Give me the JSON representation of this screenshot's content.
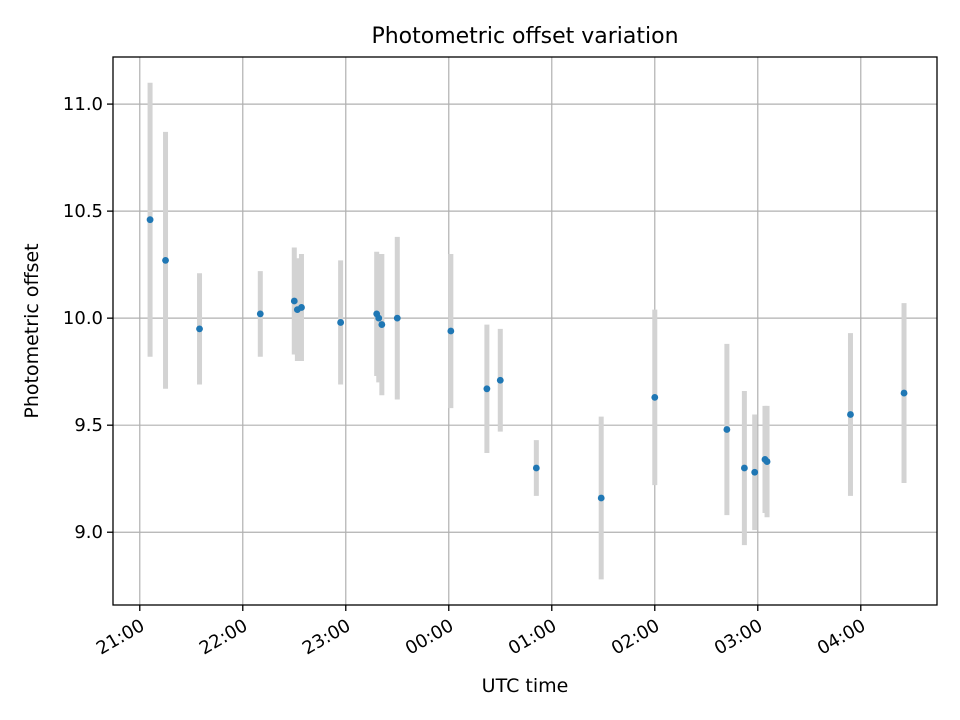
{
  "chart_data": {
    "type": "scatter",
    "title": "Photometric offset variation",
    "xlabel": "UTC time",
    "ylabel": "Photometric offset",
    "x_unit": "UTC clock time (hours; values after midnight shown as 24+)",
    "xlim": [
      20.74,
      28.74
    ],
    "ylim": [
      8.66,
      11.22
    ],
    "x_ticks": [
      21,
      22,
      23,
      24,
      25,
      26,
      27,
      28
    ],
    "x_tick_labels": [
      "21:00",
      "22:00",
      "23:00",
      "00:00",
      "01:00",
      "02:00",
      "03:00",
      "04:00"
    ],
    "y_ticks": [
      9.0,
      9.5,
      10.0,
      10.5,
      11.0
    ],
    "y_tick_labels": [
      "9.0",
      "9.5",
      "10.0",
      "10.5",
      "11.0"
    ],
    "grid": true,
    "marker_color": "#1f77b4",
    "errorbar_color": "#d3d3d3",
    "points": [
      {
        "x": 21.1,
        "y": 10.46,
        "err": 0.64
      },
      {
        "x": 21.25,
        "y": 10.27,
        "err": 0.6
      },
      {
        "x": 21.58,
        "y": 9.95,
        "err": 0.26
      },
      {
        "x": 22.17,
        "y": 10.02,
        "err": 0.2
      },
      {
        "x": 22.5,
        "y": 10.08,
        "err": 0.25
      },
      {
        "x": 22.53,
        "y": 10.04,
        "err": 0.24
      },
      {
        "x": 22.57,
        "y": 10.05,
        "err": 0.25
      },
      {
        "x": 22.95,
        "y": 9.98,
        "err": 0.29
      },
      {
        "x": 23.3,
        "y": 10.02,
        "err": 0.29
      },
      {
        "x": 23.32,
        "y": 10.0,
        "err": 0.3
      },
      {
        "x": 23.35,
        "y": 9.97,
        "err": 0.33
      },
      {
        "x": 23.5,
        "y": 10.0,
        "err": 0.38
      },
      {
        "x": 24.02,
        "y": 9.94,
        "err": 0.36
      },
      {
        "x": 24.37,
        "y": 9.67,
        "err": 0.3
      },
      {
        "x": 24.5,
        "y": 9.71,
        "err": 0.24
      },
      {
        "x": 24.85,
        "y": 9.3,
        "err": 0.13
      },
      {
        "x": 25.48,
        "y": 9.16,
        "err": 0.38
      },
      {
        "x": 26.0,
        "y": 9.63,
        "err": 0.41
      },
      {
        "x": 26.7,
        "y": 9.48,
        "err": 0.4
      },
      {
        "x": 26.87,
        "y": 9.3,
        "err": 0.36
      },
      {
        "x": 26.97,
        "y": 9.28,
        "err": 0.27
      },
      {
        "x": 27.07,
        "y": 9.34,
        "err": 0.25
      },
      {
        "x": 27.09,
        "y": 9.33,
        "err": 0.26
      },
      {
        "x": 27.9,
        "y": 9.55,
        "err": 0.38
      },
      {
        "x": 28.42,
        "y": 9.65,
        "err": 0.42
      }
    ]
  }
}
